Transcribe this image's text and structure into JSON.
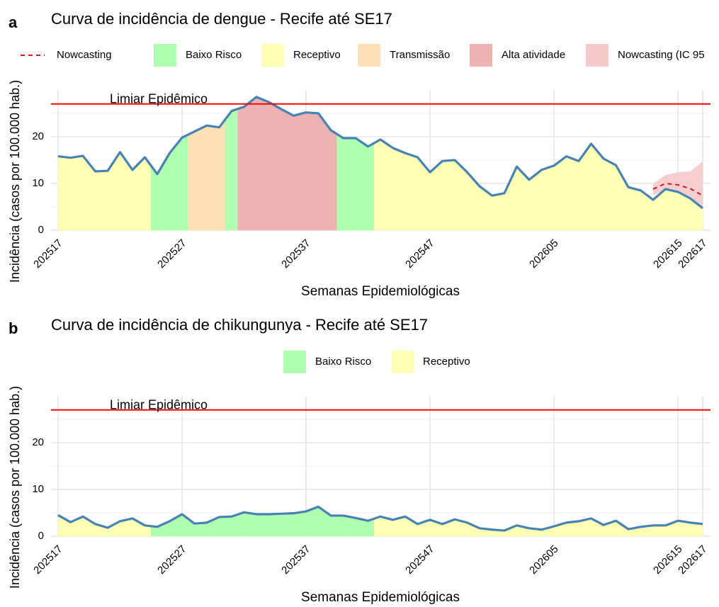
{
  "chart_data": [
    {
      "type": "area",
      "panel_label": "a",
      "title": "Curva de incidência de dengue - Recife até SE17",
      "x_label": "Semanas Epidemiológicas",
      "y_label": "Incidência (casos por 100.000 hab.)",
      "categories": [
        "202517",
        null,
        null,
        null,
        null,
        null,
        null,
        null,
        null,
        null,
        "202527",
        null,
        null,
        null,
        null,
        null,
        null,
        null,
        null,
        null,
        "202537",
        null,
        null,
        null,
        null,
        null,
        null,
        null,
        null,
        null,
        "202547",
        null,
        null,
        null,
        null,
        null,
        null,
        null,
        null,
        null,
        "202605",
        null,
        null,
        null,
        null,
        null,
        null,
        null,
        null,
        null,
        "202615",
        null,
        "202617"
      ],
      "values": [
        15.8,
        15.5,
        15.9,
        12.6,
        12.7,
        16.7,
        12.9,
        15.6,
        12.0,
        16.5,
        19.8,
        21.1,
        22.4,
        22.0,
        25.5,
        26.4,
        28.5,
        27.4,
        25.9,
        24.5,
        25.2,
        25.0,
        21.4,
        19.7,
        19.7,
        17.9,
        19.4,
        17.6,
        16.5,
        15.6,
        12.4,
        14.8,
        15.0,
        12.4,
        9.4,
        7.4,
        7.9,
        13.6,
        10.8,
        12.9,
        13.8,
        15.8,
        14.8,
        18.5,
        15.3,
        13.9,
        9.2,
        8.5,
        6.5,
        8.8,
        8.2,
        6.8,
        4.7
      ],
      "color": "#4682b4",
      "risk": [
        "Receptivo",
        "Receptivo",
        "Receptivo",
        "Receptivo",
        "Receptivo",
        "Receptivo",
        "Receptivo",
        "Receptivo",
        "Baixo Risco",
        "Baixo Risco",
        "Baixo Risco",
        "Transmissão",
        "Transmissão",
        "Transmissão",
        "Baixo Risco",
        "Alta atividade",
        "Alta atividade",
        "Alta atividade",
        "Alta atividade",
        "Alta atividade",
        "Alta atividade",
        "Alta atividade",
        "Alta atividade",
        "Baixo Risco",
        "Baixo Risco",
        "Baixo Risco",
        "Receptivo",
        "Receptivo",
        "Receptivo",
        "Receptivo",
        "Receptivo",
        "Receptivo",
        "Receptivo",
        "Receptivo",
        "Receptivo",
        "Receptivo",
        "Receptivo",
        "Receptivo",
        "Receptivo",
        "Receptivo",
        "Receptivo",
        "Receptivo",
        "Receptivo",
        "Receptivo",
        "Receptivo",
        "Receptivo",
        "Receptivo",
        "Receptivo",
        "Receptivo",
        "Receptivo",
        "Receptivo",
        "Receptivo",
        "Receptivo"
      ],
      "nowcast": {
        "name": "Nowcasting",
        "color": "#d7191c",
        "values": [
          null,
          null,
          null,
          null,
          null,
          null,
          null,
          null,
          null,
          null,
          null,
          null,
          null,
          null,
          null,
          null,
          null,
          null,
          null,
          null,
          null,
          null,
          null,
          null,
          null,
          null,
          null,
          null,
          null,
          null,
          null,
          null,
          null,
          null,
          null,
          null,
          null,
          null,
          null,
          null,
          null,
          null,
          null,
          null,
          null,
          null,
          null,
          null,
          8.8,
          10.0,
          9.7,
          8.9,
          7.4
        ],
        "lower": [
          null,
          null,
          null,
          null,
          null,
          null,
          null,
          null,
          null,
          null,
          null,
          null,
          null,
          null,
          null,
          null,
          null,
          null,
          null,
          null,
          null,
          null,
          null,
          null,
          null,
          null,
          null,
          null,
          null,
          null,
          null,
          null,
          null,
          null,
          null,
          null,
          null,
          null,
          null,
          null,
          null,
          null,
          null,
          null,
          null,
          null,
          null,
          null,
          7.5,
          8.5,
          8.0,
          7.0,
          4.8
        ],
        "upper": [
          null,
          null,
          null,
          null,
          null,
          null,
          null,
          null,
          null,
          null,
          null,
          null,
          null,
          null,
          null,
          null,
          null,
          null,
          null,
          null,
          null,
          null,
          null,
          null,
          null,
          null,
          null,
          null,
          null,
          null,
          null,
          null,
          null,
          null,
          null,
          null,
          null,
          null,
          null,
          null,
          null,
          null,
          null,
          null,
          null,
          null,
          null,
          null,
          10.0,
          11.8,
          12.4,
          12.6,
          14.7
        ]
      },
      "legend": [
        {
          "name": "Nowcasting",
          "color": "#d7191c",
          "style": "dashed"
        },
        {
          "name": "Baixo Risco",
          "color": "#b0ffb0",
          "style": "fill"
        },
        {
          "name": "Receptivo",
          "color": "#ffffb5",
          "style": "fill"
        },
        {
          "name": "Transmissão",
          "color": "#fde0b6",
          "style": "fill"
        },
        {
          "name": "Alta atividade",
          "color": "#eeb2b2",
          "style": "fill"
        },
        {
          "name": "Nowcasting (IC 95",
          "color": "#f4caca",
          "style": "fill"
        }
      ],
      "threshold": {
        "value": 27,
        "label": "Limiar Epidêmico",
        "color": "#ff0000"
      },
      "ylim": [
        0,
        30
      ],
      "yticks": [
        0,
        10,
        20
      ],
      "minor_yticks": [
        5,
        15,
        25
      ],
      "grid": true
    },
    {
      "type": "area",
      "panel_label": "b",
      "title": "Curva de incidência de chikungunya - Recife até SE17",
      "x_label": "Semanas Epidemiológicas",
      "y_label": "Incidência (casos por 100.000 hab.)",
      "categories": [
        "202517",
        null,
        null,
        null,
        null,
        null,
        null,
        null,
        null,
        null,
        "202527",
        null,
        null,
        null,
        null,
        null,
        null,
        null,
        null,
        null,
        "202537",
        null,
        null,
        null,
        null,
        null,
        null,
        null,
        null,
        null,
        "202547",
        null,
        null,
        null,
        null,
        null,
        null,
        null,
        null,
        null,
        "202605",
        null,
        null,
        null,
        null,
        null,
        null,
        null,
        null,
        null,
        "202615",
        null,
        "202617"
      ],
      "values": [
        4.5,
        3.0,
        4.2,
        2.6,
        1.8,
        3.2,
        3.8,
        2.3,
        2.0,
        3.2,
        4.7,
        2.7,
        2.9,
        4.1,
        4.2,
        5.1,
        4.7,
        4.7,
        4.8,
        4.9,
        5.3,
        6.3,
        4.4,
        4.4,
        3.9,
        3.3,
        4.2,
        3.5,
        4.2,
        2.6,
        3.5,
        2.6,
        3.6,
        2.9,
        1.7,
        1.4,
        1.2,
        2.3,
        1.7,
        1.4,
        2.1,
        2.9,
        3.2,
        3.8,
        2.4,
        3.3,
        1.5,
        2.0,
        2.3,
        2.3,
        3.3,
        2.9,
        2.6
      ],
      "color": "#4682b4",
      "risk": [
        "Receptivo",
        "Receptivo",
        "Receptivo",
        "Receptivo",
        "Receptivo",
        "Receptivo",
        "Receptivo",
        "Receptivo",
        "Baixo Risco",
        "Baixo Risco",
        "Baixo Risco",
        "Baixo Risco",
        "Baixo Risco",
        "Baixo Risco",
        "Baixo Risco",
        "Baixo Risco",
        "Baixo Risco",
        "Baixo Risco",
        "Baixo Risco",
        "Baixo Risco",
        "Baixo Risco",
        "Baixo Risco",
        "Baixo Risco",
        "Baixo Risco",
        "Baixo Risco",
        "Baixo Risco",
        "Receptivo",
        "Receptivo",
        "Receptivo",
        "Receptivo",
        "Receptivo",
        "Receptivo",
        "Receptivo",
        "Receptivo",
        "Receptivo",
        "Receptivo",
        "Receptivo",
        "Receptivo",
        "Receptivo",
        "Receptivo",
        "Receptivo",
        "Receptivo",
        "Receptivo",
        "Receptivo",
        "Receptivo",
        "Receptivo",
        "Receptivo",
        "Receptivo",
        "Receptivo",
        "Receptivo",
        "Receptivo",
        "Receptivo",
        "Receptivo"
      ],
      "legend": [
        {
          "name": "Baixo Risco",
          "color": "#b0ffb0",
          "style": "fill"
        },
        {
          "name": "Receptivo",
          "color": "#ffffb5",
          "style": "fill"
        }
      ],
      "threshold": {
        "value": 27,
        "label": "Limiar Epidêmico",
        "color": "#ff0000"
      },
      "ylim": [
        0,
        30
      ],
      "yticks": [
        0,
        10,
        20
      ],
      "minor_yticks": [
        5,
        15,
        25
      ],
      "grid": true
    }
  ]
}
